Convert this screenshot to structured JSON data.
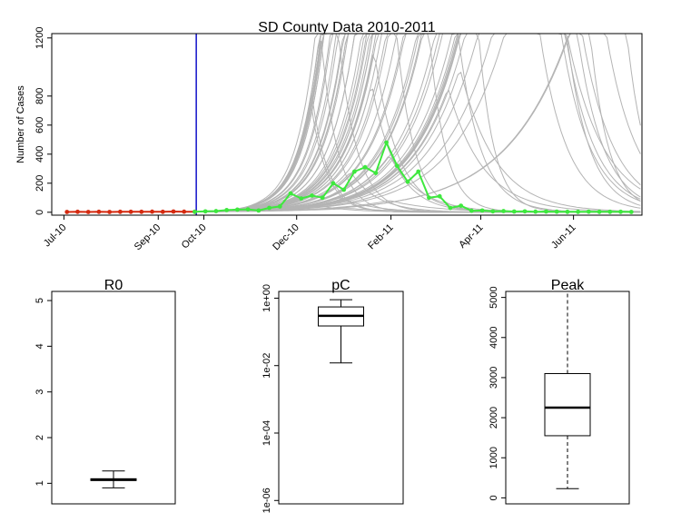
{
  "colors": {
    "observed_pre": "#d42a10",
    "observed_post": "#3ee83e",
    "simulations": "#b4b4b4",
    "vline": "#1010c8"
  },
  "chart_data": [
    {
      "type": "line",
      "title": "SD County Data 2010-2011",
      "xlabel": "",
      "ylabel": "Number of Cases",
      "xlim": [
        "2010-06-23",
        "2011-07-16"
      ],
      "ylim": [
        -20,
        1230
      ],
      "x_tick_values": [
        "2010-07-01",
        "2010-09-01",
        "2010-10-01",
        "2010-12-01",
        "2011-02-01",
        "2011-04-01",
        "2011-06-01"
      ],
      "x_tick_labels": [
        "Jul-10",
        "Sep-10",
        "Oct-10",
        "Dec-10",
        "Feb-11",
        "Apr-11",
        "Jun-11"
      ],
      "y_ticks": [
        0,
        200,
        400,
        600,
        800,
        1200
      ],
      "y_tick_labels": [
        "0",
        "200",
        "400",
        "600",
        "800",
        "1200"
      ],
      "grid": false,
      "vertical_line": "2010-09-26",
      "series": [
        {
          "x": [
            "2010-07-03",
            "2010-07-10",
            "2010-07-17",
            "2010-07-24",
            "2010-07-31",
            "2010-08-07",
            "2010-08-14",
            "2010-08-21",
            "2010-08-28",
            "2010-09-04",
            "2010-09-11",
            "2010-09-18",
            "2010-09-25"
          ],
          "y": [
            2,
            3,
            2,
            3,
            2,
            3,
            3,
            3,
            4,
            3,
            5,
            4,
            3
          ]
        },
        {
          "x": [
            "2010-09-25",
            "2010-10-02",
            "2010-10-09",
            "2010-10-16",
            "2010-10-23",
            "2010-10-30",
            "2010-11-06",
            "2010-11-13",
            "2010-11-20",
            "2010-11-27",
            "2010-12-04",
            "2010-12-11",
            "2010-12-18",
            "2010-12-25",
            "2011-01-01",
            "2011-01-08",
            "2011-01-15",
            "2011-01-22",
            "2011-01-29",
            "2011-02-05",
            "2011-02-12",
            "2011-02-19",
            "2011-02-26",
            "2011-03-05",
            "2011-03-12",
            "2011-03-19",
            "2011-03-26",
            "2011-04-02",
            "2011-04-09",
            "2011-04-16",
            "2011-04-23",
            "2011-04-30",
            "2011-05-07",
            "2011-05-14",
            "2011-05-21",
            "2011-05-28",
            "2011-06-04",
            "2011-06-11",
            "2011-06-18",
            "2011-06-25",
            "2011-07-02",
            "2011-07-09"
          ],
          "y": [
            3,
            6,
            8,
            15,
            18,
            20,
            12,
            30,
            40,
            130,
            95,
            115,
            100,
            200,
            155,
            280,
            310,
            270,
            480,
            320,
            210,
            280,
            100,
            110,
            30,
            45,
            10,
            12,
            6,
            8,
            5,
            6,
            4,
            5,
            4,
            3,
            3,
            4,
            3,
            3,
            3,
            2
          ]
        }
      ],
      "simulation_bundle": {
        "count": 68,
        "start": "2010-09-26",
        "start_value": 3,
        "peak_dates": [
          "2010-12-10",
          "2011-11-15"
        ],
        "growth_per_week": [
          0.15,
          0.55
        ]
      }
    },
    {
      "type": "boxplot",
      "title": "R0",
      "y_ticks": [
        1,
        2,
        3,
        4,
        5
      ],
      "y_tick_labels": [
        "1",
        "2",
        "3",
        "4",
        "5"
      ],
      "ylim": [
        0.55,
        5.2
      ],
      "median": 1.08,
      "q1": 1.06,
      "q3": 1.1,
      "whisker_low": 0.9,
      "whisker_high": 1.27
    },
    {
      "type": "boxplot",
      "title": "pC",
      "log_scale": true,
      "y_ticks": [
        1e-06,
        0.0001,
        0.01,
        1
      ],
      "y_tick_labels": [
        "1e-06",
        "1e-04",
        "1e-02",
        "1e+00"
      ],
      "ylim_log10": [
        -6.1,
        0.2
      ],
      "median": 0.3,
      "q1": 0.15,
      "q3": 0.55,
      "whisker_low": 0.012,
      "whisker_high": 0.9
    },
    {
      "type": "boxplot",
      "title": "Peak",
      "y_ticks": [
        0,
        1000,
        2000,
        3000,
        4000,
        5000
      ],
      "y_tick_labels": [
        "0",
        "1000",
        "2000",
        "3000",
        "4000",
        "5000"
      ],
      "ylim": [
        -150,
        5150
      ],
      "median": 2250,
      "q1": 1550,
      "q3": 3100,
      "whisker_low": 230,
      "whisker_high": 5150,
      "whisker_style": "dashed"
    }
  ]
}
